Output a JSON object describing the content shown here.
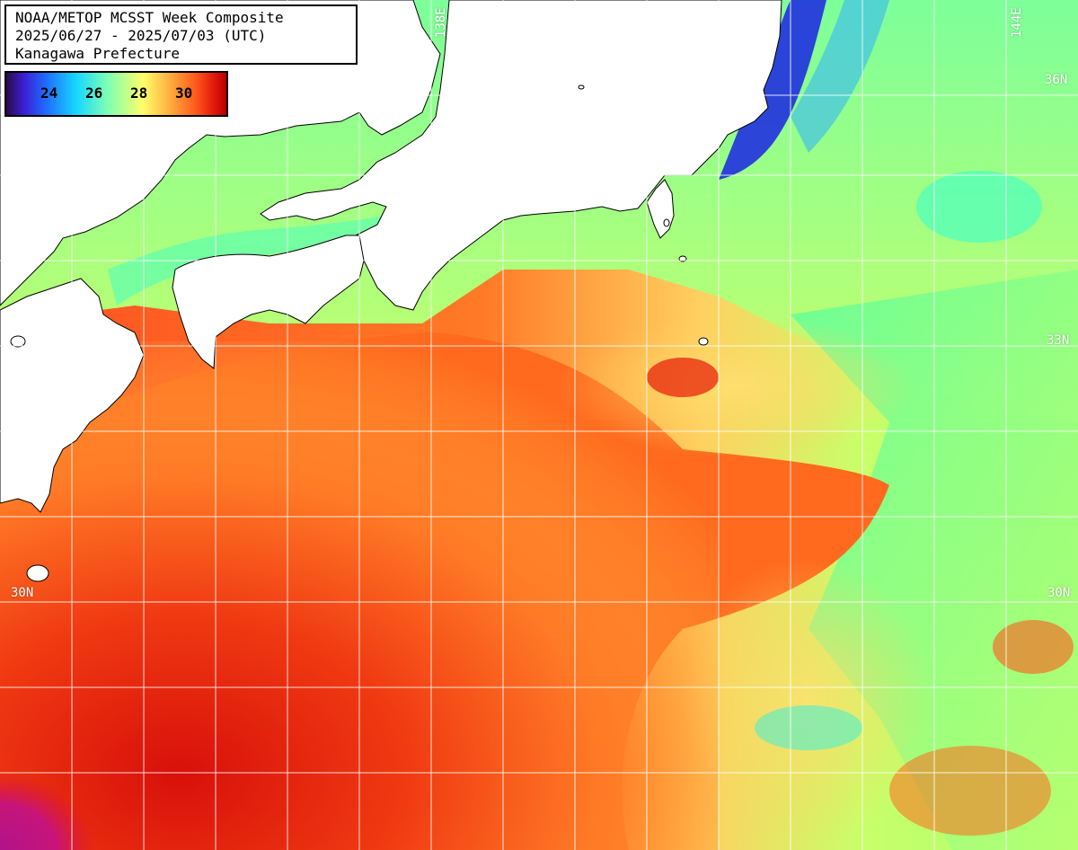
{
  "title": {
    "line1": "NOAA/METOP MCSST Week Composite",
    "line2": "2025/06/27 - 2025/07/03 (UTC)",
    "line3": "Kanagawa Prefecture"
  },
  "color_scale": {
    "labels": [
      "24",
      "26",
      "28",
      "30"
    ],
    "colors": [
      "#2a0a4a",
      "#3b1fd4",
      "#1e6cff",
      "#18d8ff",
      "#7dffb4",
      "#ffff6a",
      "#ffb040",
      "#ff5a1c",
      "#e0140a",
      "#b40000"
    ]
  },
  "grid_labels": {
    "lat_36": "36N",
    "lat_33": "33N",
    "lat_30_left": "30N",
    "lat_30_right": "30N",
    "lon_138": "138E",
    "lon_144": "144E"
  },
  "palette": {
    "land": "#ffffff",
    "coastline": "#000000",
    "grid": "#ffffff",
    "warm_sea": "#ff6a1e",
    "hot_sea": "#e8240c",
    "cool_sea": "#7dff8a",
    "cold_coast": "#2030e0",
    "tropical_purple": "#b0138a"
  }
}
